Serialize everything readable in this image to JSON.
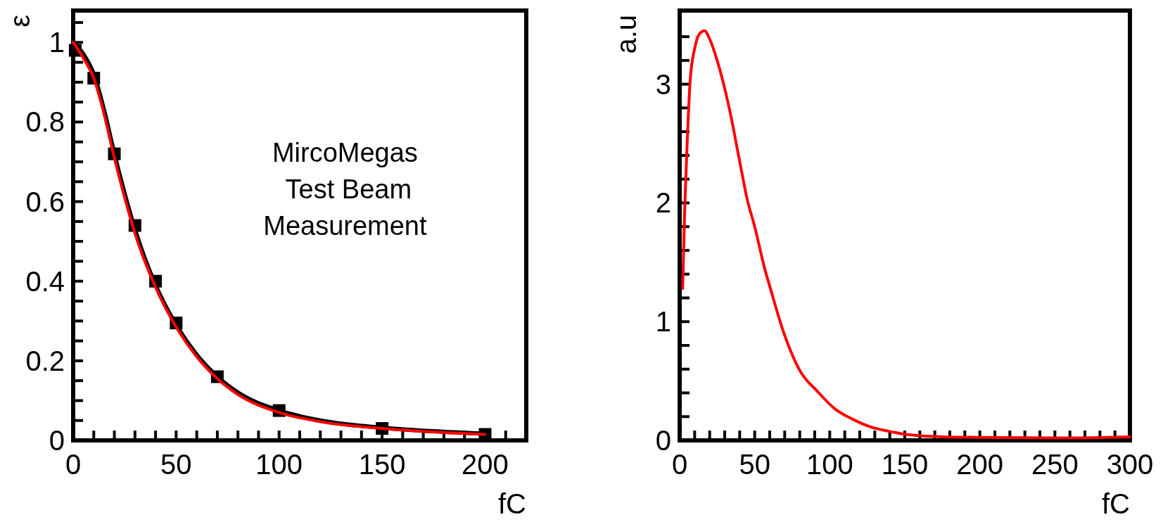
{
  "chart_data": [
    {
      "type": "line",
      "xlabel": "fC",
      "ylabel": "ε",
      "annotations": [
        "MircoMegas\n Test Beam\nMeasurement"
      ],
      "xlim": [
        0,
        220
      ],
      "ylim": [
        0,
        1.08
      ],
      "xticks": [
        0,
        {
          "value": 10,
          "label": null
        },
        {
          "value": 20,
          "label": null
        },
        {
          "value": 30,
          "label": null
        },
        {
          "value": 40,
          "label": null
        },
        50,
        {
          "value": 60,
          "label": null
        },
        {
          "value": 70,
          "label": null
        },
        {
          "value": 80,
          "label": null
        },
        {
          "value": 90,
          "label": null
        },
        100,
        {
          "value": 110,
          "label": null
        },
        {
          "value": 120,
          "label": null
        },
        {
          "value": 130,
          "label": null
        },
        {
          "value": 140,
          "label": null
        },
        150,
        {
          "value": 160,
          "label": null
        },
        {
          "value": 170,
          "label": null
        },
        {
          "value": 180,
          "label": null
        },
        {
          "value": 190,
          "label": null
        },
        200,
        {
          "value": 210,
          "label": null
        }
      ],
      "yticks": [
        0,
        {
          "value": 0.05,
          "label": null
        },
        {
          "value": 0.1,
          "label": null
        },
        {
          "value": 0.15,
          "label": null
        },
        0.2,
        {
          "value": 0.25,
          "label": null
        },
        {
          "value": 0.3,
          "label": null
        },
        {
          "value": 0.35,
          "label": null
        },
        0.4,
        {
          "value": 0.45,
          "label": null
        },
        {
          "value": 0.5,
          "label": null
        },
        {
          "value": 0.55,
          "label": null
        },
        0.6,
        {
          "value": 0.65,
          "label": null
        },
        {
          "value": 0.7,
          "label": null
        },
        {
          "value": 0.75,
          "label": null
        },
        0.8,
        {
          "value": 0.85,
          "label": null
        },
        {
          "value": 0.9,
          "label": null
        },
        {
          "value": 0.95,
          "label": null
        },
        1,
        {
          "value": 1.05,
          "label": null
        }
      ],
      "series": [
        {
          "color": "#000000",
          "x": [
            0,
            5,
            10,
            15,
            20,
            25,
            30,
            40,
            50,
            60,
            70,
            80,
            100,
            120,
            150,
            175,
            200
          ],
          "values": [
            1.0,
            0.97,
            0.92,
            0.83,
            0.72,
            0.62,
            0.53,
            0.39,
            0.29,
            0.215,
            0.16,
            0.12,
            0.075,
            0.05,
            0.032,
            0.023,
            0.017
          ]
        },
        {
          "color": "#ff0000",
          "x": [
            0,
            5,
            10,
            15,
            20,
            25,
            30,
            40,
            50,
            60,
            70,
            80,
            100,
            120,
            150,
            175,
            200
          ],
          "values": [
            1.0,
            0.96,
            0.91,
            0.82,
            0.71,
            0.61,
            0.52,
            0.385,
            0.285,
            0.21,
            0.155,
            0.115,
            0.07,
            0.047,
            0.03,
            0.021,
            0.015
          ]
        },
        {
          "type": "scatter",
          "marker": "square",
          "color": "#000000",
          "x": [
            1,
            10,
            20,
            30,
            40,
            50,
            70,
            100,
            150,
            200
          ],
          "values": [
            0.98,
            0.91,
            0.72,
            0.54,
            0.4,
            0.295,
            0.16,
            0.075,
            0.03,
            0.015
          ]
        }
      ]
    },
    {
      "type": "line",
      "xlabel": "fC",
      "ylabel": "a.u",
      "xlim": [
        0,
        300
      ],
      "ylim": [
        0,
        3.62
      ],
      "xticks": [
        0,
        {
          "value": 10,
          "label": null
        },
        {
          "value": 20,
          "label": null
        },
        {
          "value": 30,
          "label": null
        },
        {
          "value": 40,
          "label": null
        },
        50,
        {
          "value": 60,
          "label": null
        },
        {
          "value": 70,
          "label": null
        },
        {
          "value": 80,
          "label": null
        },
        {
          "value": 90,
          "label": null
        },
        100,
        {
          "value": 110,
          "label": null
        },
        {
          "value": 120,
          "label": null
        },
        {
          "value": 130,
          "label": null
        },
        {
          "value": 140,
          "label": null
        },
        150,
        {
          "value": 160,
          "label": null
        },
        {
          "value": 170,
          "label": null
        },
        {
          "value": 180,
          "label": null
        },
        {
          "value": 190,
          "label": null
        },
        200,
        {
          "value": 210,
          "label": null
        },
        {
          "value": 220,
          "label": null
        },
        {
          "value": 230,
          "label": null
        },
        {
          "value": 240,
          "label": null
        },
        250,
        {
          "value": 260,
          "label": null
        },
        {
          "value": 270,
          "label": null
        },
        {
          "value": 280,
          "label": null
        },
        {
          "value": 290,
          "label": null
        },
        300
      ],
      "yticks": [
        0,
        {
          "value": 0.2,
          "label": null
        },
        {
          "value": 0.4,
          "label": null
        },
        {
          "value": 0.6,
          "label": null
        },
        {
          "value": 0.8,
          "label": null
        },
        1,
        {
          "value": 1.2,
          "label": null
        },
        {
          "value": 1.4,
          "label": null
        },
        {
          "value": 1.6,
          "label": null
        },
        {
          "value": 1.8,
          "label": null
        },
        2,
        {
          "value": 2.2,
          "label": null
        },
        {
          "value": 2.4,
          "label": null
        },
        {
          "value": 2.6,
          "label": null
        },
        {
          "value": 2.8,
          "label": null
        },
        3,
        {
          "value": 3.2,
          "label": null
        },
        {
          "value": 3.4,
          "label": null
        }
      ],
      "series": [
        {
          "color": "#ff0000",
          "x": [
            2,
            3.5,
            5,
            7,
            10,
            13,
            16.6,
            20,
            25,
            33,
            40,
            45,
            50,
            57,
            60,
            69,
            80,
            92,
            104,
            115,
            128,
            140,
            151,
            175,
            200,
            250,
            300
          ],
          "values": [
            1.28,
            2.0,
            2.5,
            3.03,
            3.3,
            3.42,
            3.45,
            3.38,
            3.2,
            2.8,
            2.35,
            2.03,
            1.8,
            1.43,
            1.3,
            0.92,
            0.59,
            0.41,
            0.26,
            0.18,
            0.11,
            0.075,
            0.05,
            0.03,
            0.025,
            0.02,
            0.03
          ]
        }
      ]
    }
  ]
}
